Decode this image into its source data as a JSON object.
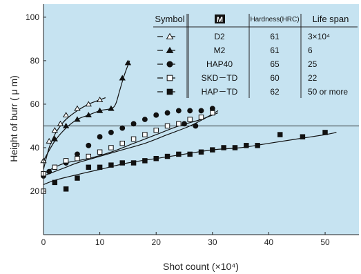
{
  "chart_data": {
    "type": "scatter",
    "xlabel": "Shot count (×10⁴)",
    "ylabel": "Height of burr ( μ m)",
    "xlim": [
      0,
      56
    ],
    "ylim": [
      0,
      106
    ],
    "x_ticks": [
      0,
      10,
      20,
      30,
      40,
      50
    ],
    "y_ticks": [
      20,
      40,
      60,
      80,
      100
    ],
    "reference_line_y": 50,
    "grid": false,
    "legend_position": "top-right",
    "legend_headers": {
      "symbol": "Symbol",
      "material_icon": "M",
      "hardness": "Hardness(HRC)",
      "life": "Life span"
    },
    "series": [
      {
        "name": "D2",
        "hardness": "61",
        "life": "3×10⁴",
        "marker": "triangle-open",
        "color": "#111111",
        "points": [
          [
            0,
            34
          ],
          [
            1,
            43
          ],
          [
            2,
            48
          ],
          [
            3,
            51
          ],
          [
            4,
            55
          ],
          [
            6,
            58
          ],
          [
            8,
            60
          ],
          [
            10,
            62
          ]
        ],
        "curve": [
          [
            0,
            30
          ],
          [
            1,
            40
          ],
          [
            2,
            46
          ],
          [
            3,
            50
          ],
          [
            4,
            53
          ],
          [
            6,
            57
          ],
          [
            8,
            60
          ],
          [
            10,
            62
          ],
          [
            11,
            63
          ]
        ]
      },
      {
        "name": "M2",
        "hardness": "61",
        "life": "6",
        "marker": "triangle-filled",
        "color": "#111111",
        "points": [
          [
            2,
            44
          ],
          [
            4,
            50
          ],
          [
            6,
            53
          ],
          [
            8,
            55
          ],
          [
            10,
            57
          ],
          [
            12,
            58
          ],
          [
            14,
            72
          ],
          [
            15,
            79
          ]
        ],
        "curve": [
          [
            0,
            34
          ],
          [
            2,
            43
          ],
          [
            4,
            49
          ],
          [
            6,
            53
          ],
          [
            8,
            55
          ],
          [
            10,
            57
          ],
          [
            12,
            58
          ],
          [
            12.8,
            60
          ],
          [
            13.5,
            66
          ],
          [
            14.3,
            73
          ],
          [
            15.3,
            80
          ]
        ]
      },
      {
        "name": "HAP40",
        "hardness": "65",
        "life": "25",
        "marker": "circle-filled",
        "color": "#111111",
        "points": [
          [
            0,
            27
          ],
          [
            1,
            29
          ],
          [
            4,
            33
          ],
          [
            6,
            37
          ],
          [
            8,
            41
          ],
          [
            10,
            45
          ],
          [
            12,
            47
          ],
          [
            14,
            49
          ],
          [
            16,
            51
          ],
          [
            18,
            53
          ],
          [
            20,
            55
          ],
          [
            22,
            56
          ],
          [
            24,
            57
          ],
          [
            25,
            51
          ],
          [
            26,
            57
          ],
          [
            27,
            50
          ],
          [
            28,
            57
          ],
          [
            30,
            58
          ]
        ],
        "curve": [
          [
            0,
            27
          ],
          [
            2,
            29
          ],
          [
            4,
            31
          ],
          [
            6,
            33
          ],
          [
            10,
            36
          ],
          [
            14,
            39
          ],
          [
            18,
            42
          ],
          [
            22,
            46
          ],
          [
            26,
            50
          ],
          [
            29,
            54
          ],
          [
            31,
            57
          ]
        ]
      },
      {
        "name": "SKD－TD",
        "hardness": "60",
        "life": "22",
        "marker": "square-open",
        "color": "#111111",
        "points": [
          [
            0,
            20
          ],
          [
            0,
            28
          ],
          [
            2,
            31
          ],
          [
            4,
            34
          ],
          [
            6,
            35
          ],
          [
            8,
            36
          ],
          [
            10,
            38
          ],
          [
            12,
            40
          ],
          [
            14,
            42
          ],
          [
            16,
            44
          ],
          [
            18,
            46
          ],
          [
            20,
            48
          ],
          [
            22,
            50
          ],
          [
            24,
            51
          ],
          [
            26,
            53
          ],
          [
            28,
            54
          ],
          [
            30,
            56
          ]
        ],
        "curve": [
          [
            0,
            28
          ],
          [
            2,
            31
          ],
          [
            4,
            33
          ],
          [
            8,
            35
          ],
          [
            12,
            38
          ],
          [
            16,
            42
          ],
          [
            20,
            46
          ],
          [
            24,
            50
          ],
          [
            28,
            53
          ],
          [
            31,
            56
          ]
        ]
      },
      {
        "name": "HAP－TD",
        "hardness": "62",
        "life": "50 or more",
        "marker": "square-filled",
        "color": "#111111",
        "points": [
          [
            2,
            24
          ],
          [
            4,
            21
          ],
          [
            6,
            26
          ],
          [
            8,
            31
          ],
          [
            10,
            31
          ],
          [
            12,
            32
          ],
          [
            14,
            33
          ],
          [
            16,
            33
          ],
          [
            18,
            34
          ],
          [
            20,
            35
          ],
          [
            22,
            36
          ],
          [
            24,
            37
          ],
          [
            26,
            37
          ],
          [
            28,
            38
          ],
          [
            30,
            39
          ],
          [
            32,
            40
          ],
          [
            34,
            40
          ],
          [
            36,
            41
          ],
          [
            38,
            41
          ],
          [
            42,
            46
          ],
          [
            46,
            45
          ],
          [
            50,
            47
          ]
        ],
        "curve": [
          [
            0,
            23
          ],
          [
            2,
            25
          ],
          [
            5,
            27
          ],
          [
            10,
            30
          ],
          [
            15,
            33
          ],
          [
            20,
            35
          ],
          [
            25,
            37
          ],
          [
            30,
            39
          ],
          [
            35,
            40
          ],
          [
            40,
            42
          ],
          [
            45,
            44
          ],
          [
            50,
            46
          ],
          [
            52,
            47
          ]
        ]
      }
    ]
  }
}
